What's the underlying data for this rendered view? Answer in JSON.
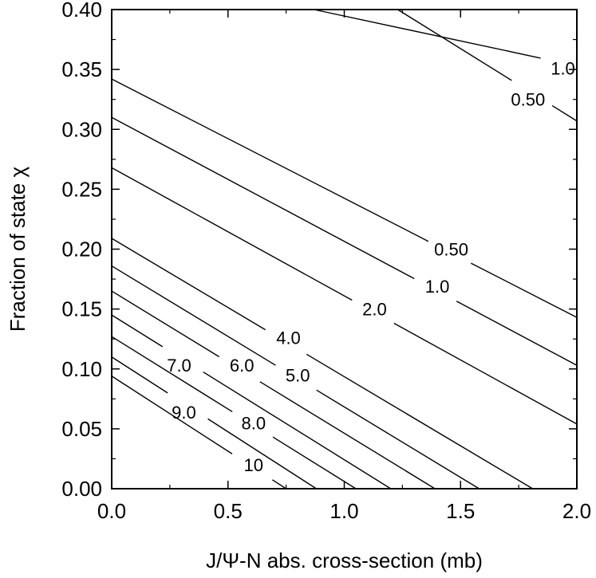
{
  "chart_data": {
    "type": "line",
    "subtype": "contour",
    "xlabel": "J/Ψ-N abs. cross-section (mb)",
    "ylabel": "Fraction of state χ",
    "xlim": [
      0.0,
      2.0
    ],
    "ylim": [
      0.0,
      0.4
    ],
    "x_ticks": [
      0.0,
      0.5,
      1.0,
      1.5,
      2.0
    ],
    "x_tick_labels": [
      "0.0",
      "0.5",
      "1.0",
      "1.5",
      "2.0"
    ],
    "y_ticks": [
      0.0,
      0.05,
      0.1,
      0.15,
      0.2,
      0.25,
      0.3,
      0.35,
      0.4
    ],
    "y_tick_labels": [
      "0.00",
      "0.05",
      "0.10",
      "0.15",
      "0.20",
      "0.25",
      "0.30",
      "0.35",
      "0.40"
    ],
    "grid": false,
    "series": [
      {
        "name": "1.0",
        "points": [
          [
            0.87,
            0.4
          ],
          [
            2.0,
            0.353
          ]
        ],
        "label": "1.0",
        "label_at": [
          1.94,
          0.351
        ]
      },
      {
        "name": "0.50",
        "points": [
          [
            1.23,
            0.4
          ],
          [
            2.0,
            0.307
          ]
        ],
        "label": "0.50",
        "label_at": [
          1.79,
          0.325
        ]
      },
      {
        "name": "0.50",
        "points": [
          [
            0.0,
            0.342
          ],
          [
            2.0,
            0.143
          ]
        ],
        "label": "0.50",
        "label_at": [
          1.46,
          0.2
        ]
      },
      {
        "name": "1.0",
        "points": [
          [
            0.0,
            0.31
          ],
          [
            2.0,
            0.103
          ]
        ],
        "label": "1.0",
        "label_at": [
          1.4,
          0.169
        ]
      },
      {
        "name": "2.0",
        "points": [
          [
            0.0,
            0.268
          ],
          [
            2.0,
            0.054
          ]
        ],
        "label": "2.0",
        "label_at": [
          1.13,
          0.15
        ]
      },
      {
        "name": "4.0",
        "points": [
          [
            0.0,
            0.209
          ],
          [
            1.81,
            0.0
          ]
        ],
        "label": "4.0",
        "label_at": [
          0.76,
          0.126
        ]
      },
      {
        "name": "5.0",
        "points": [
          [
            0.0,
            0.186
          ],
          [
            1.58,
            0.0
          ]
        ],
        "label": "5.0",
        "label_at": [
          0.8,
          0.095
        ]
      },
      {
        "name": "6.0",
        "points": [
          [
            0.0,
            0.165
          ],
          [
            1.39,
            0.0
          ]
        ],
        "label": "6.0",
        "label_at": [
          0.56,
          0.103
        ]
      },
      {
        "name": "7.0",
        "points": [
          [
            0.0,
            0.145
          ],
          [
            1.2,
            0.0
          ]
        ],
        "label": "7.0",
        "label_at": [
          0.29,
          0.103
        ]
      },
      {
        "name": "8.0",
        "points": [
          [
            0.0,
            0.127
          ],
          [
            1.05,
            0.0
          ]
        ],
        "label": "8.0",
        "label_at": [
          0.61,
          0.055
        ]
      },
      {
        "name": "9.0",
        "points": [
          [
            0.0,
            0.11
          ],
          [
            0.88,
            0.0
          ]
        ],
        "label": "9.0",
        "label_at": [
          0.31,
          0.064
        ]
      },
      {
        "name": "10",
        "points": [
          [
            0.0,
            0.094
          ],
          [
            0.75,
            0.0
          ]
        ],
        "label": "10",
        "label_at": [
          0.61,
          0.02
        ]
      }
    ]
  }
}
